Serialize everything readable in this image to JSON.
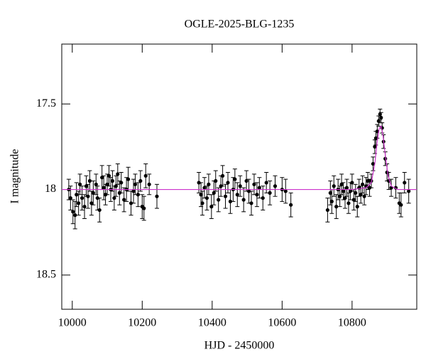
{
  "chart_data": {
    "type": "scatter",
    "title": "OGLE-2025-BLG-1235",
    "x_label": "HJD - 2450000",
    "y_label": "I magnitude",
    "xlim": [
      9970,
      10985
    ],
    "xticks": [
      10000,
      10200,
      10400,
      10600,
      10800
    ],
    "ylim": [
      17.15,
      18.7
    ],
    "yticks": [
      17.5,
      18,
      18.5
    ],
    "y_inverted": true,
    "series": [
      {
        "type": "errorbar",
        "color": "#000000",
        "x": [
          9990,
          9995,
          10002,
          10008,
          10012,
          10018,
          10022,
          10028,
          10035,
          10040,
          10045,
          10050,
          10055,
          10060,
          10068,
          10072,
          10078,
          10085,
          10090,
          10095,
          10100,
          10105,
          10110,
          10115,
          10120,
          10125,
          10130,
          10135,
          10140,
          10148,
          10155,
          10160,
          10168,
          10175,
          10180,
          10188,
          10195,
          10200,
          10205,
          10210,
          10220,
          10242,
          10362,
          10368,
          10372,
          10378,
          10385,
          10390,
          10398,
          10405,
          10410,
          10418,
          10425,
          10430,
          10438,
          10445,
          10452,
          10460,
          10465,
          10472,
          10480,
          10490,
          10498,
          10505,
          10512,
          10520,
          10528,
          10535,
          10545,
          10555,
          10565,
          10580,
          10600,
          10610,
          10625,
          10730,
          10738,
          10742,
          10748,
          10755,
          10760,
          10765,
          10770,
          10775,
          10780,
          10785,
          10790,
          10795,
          10800,
          10805,
          10810,
          10815,
          10820,
          10825,
          10830,
          10835,
          10840,
          10845,
          10850,
          10855,
          10860,
          10865,
          10868,
          10872,
          10876,
          10880,
          10883,
          10886,
          10890,
          10895,
          10900,
          10905,
          10912,
          10925,
          10935,
          10940,
          10950,
          10962
        ],
        "values": [
          18.0,
          18.05,
          18.13,
          18.15,
          18.03,
          18.08,
          17.97,
          18.05,
          18.1,
          17.98,
          18.04,
          17.95,
          18.08,
          18.02,
          17.97,
          18.05,
          18.12,
          17.93,
          17.99,
          18.03,
          17.97,
          17.92,
          18.0,
          17.95,
          18.05,
          17.98,
          17.91,
          18.02,
          17.96,
          18.06,
          18.0,
          17.94,
          18.08,
          18.01,
          17.97,
          18.03,
          17.95,
          18.1,
          18.11,
          17.92,
          17.97,
          18.04,
          17.96,
          18.03,
          18.08,
          17.99,
          18.05,
          17.97,
          18.1,
          18.02,
          17.95,
          18.06,
          17.98,
          17.92,
          18.04,
          17.96,
          18.07,
          18.0,
          17.94,
          18.03,
          17.98,
          18.06,
          17.95,
          18.01,
          18.08,
          17.97,
          18.03,
          17.99,
          18.05,
          17.96,
          18.02,
          17.98,
          18.0,
          18.01,
          18.09,
          18.12,
          18.02,
          18.07,
          17.98,
          18.1,
          18.0,
          18.04,
          17.97,
          18.01,
          18.05,
          17.99,
          18.08,
          18.01,
          17.96,
          18.06,
          18.02,
          18.1,
          17.99,
          18.03,
          17.97,
          18.04,
          17.98,
          17.95,
          17.99,
          17.95,
          17.85,
          17.75,
          17.7,
          17.66,
          17.6,
          17.56,
          17.58,
          17.64,
          17.72,
          17.82,
          17.9,
          17.95,
          17.99,
          17.99,
          18.08,
          18.09,
          17.96,
          18.01
        ],
        "errors": [
          0.06,
          0.07,
          0.07,
          0.08,
          0.07,
          0.07,
          0.06,
          0.07,
          0.07,
          0.06,
          0.07,
          0.06,
          0.07,
          0.07,
          0.06,
          0.07,
          0.07,
          0.07,
          0.07,
          0.06,
          0.06,
          0.06,
          0.07,
          0.06,
          0.07,
          0.06,
          0.06,
          0.07,
          0.06,
          0.07,
          0.07,
          0.07,
          0.07,
          0.07,
          0.06,
          0.07,
          0.06,
          0.07,
          0.07,
          0.07,
          0.06,
          0.07,
          0.06,
          0.07,
          0.07,
          0.06,
          0.07,
          0.06,
          0.07,
          0.07,
          0.06,
          0.07,
          0.06,
          0.06,
          0.07,
          0.06,
          0.07,
          0.07,
          0.06,
          0.07,
          0.06,
          0.07,
          0.06,
          0.07,
          0.07,
          0.06,
          0.07,
          0.06,
          0.07,
          0.06,
          0.07,
          0.06,
          0.07,
          0.07,
          0.07,
          0.07,
          0.07,
          0.07,
          0.06,
          0.07,
          0.06,
          0.06,
          0.06,
          0.05,
          0.06,
          0.05,
          0.06,
          0.05,
          0.05,
          0.06,
          0.05,
          0.06,
          0.05,
          0.05,
          0.05,
          0.05,
          0.05,
          0.05,
          0.05,
          0.04,
          0.04,
          0.04,
          0.04,
          0.04,
          0.03,
          0.03,
          0.03,
          0.03,
          0.04,
          0.04,
          0.05,
          0.05,
          0.05,
          0.06,
          0.06,
          0.07,
          0.06,
          0.07
        ]
      },
      {
        "type": "line",
        "color": "#cc33cc",
        "x": [
          9970,
          10800,
          10840,
          10855,
          10865,
          10872,
          10878,
          10883,
          10888,
          10895,
          10903,
          10912,
          10930,
          10985
        ],
        "values": [
          18.0,
          18.0,
          17.99,
          17.96,
          17.85,
          17.72,
          17.64,
          17.63,
          17.68,
          17.8,
          17.92,
          17.98,
          18.0,
          18.0
        ]
      }
    ]
  }
}
